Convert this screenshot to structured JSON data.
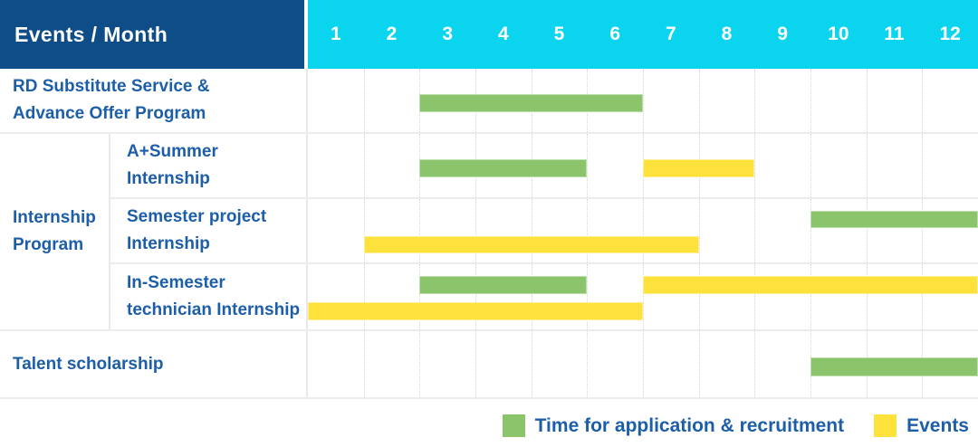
{
  "header": {
    "title": "Events / Month",
    "months": [
      "1",
      "2",
      "3",
      "4",
      "5",
      "6",
      "7",
      "8",
      "9",
      "10",
      "11",
      "12"
    ]
  },
  "colors": {
    "header_bg": "#0e4d87",
    "months_bg": "#0bd5ee",
    "application": "#8bc46a",
    "event": "#fde23c",
    "label_text": "#1c5ea8"
  },
  "legend": {
    "items": [
      {
        "key": "application",
        "label": "Time for application & recruitment"
      },
      {
        "key": "event",
        "label": "Events"
      }
    ]
  },
  "chart_data": {
    "type": "bar",
    "subtype": "gantt",
    "title": "Events / Month",
    "xlabel": "Month",
    "x_ticks": [
      1,
      2,
      3,
      4,
      5,
      6,
      7,
      8,
      9,
      10,
      11,
      12
    ],
    "x_range": [
      1,
      12
    ],
    "grid": "dotted-vertical",
    "legend_position": "bottom-right",
    "series_meaning": {
      "application": "Time for application & recruitment",
      "event": "Events"
    },
    "rows": [
      {
        "group": null,
        "label": "RD Substitute Service & Advance Offer Program",
        "label_lines": [
          "RD Substitute Service &",
          "Advance Offer Program"
        ],
        "bars": [
          {
            "kind": "application",
            "start_month": 3,
            "end_month": 6,
            "lane": "center"
          }
        ]
      },
      {
        "group": "Internship Program",
        "group_lines": [
          "Internship",
          "Program"
        ],
        "label": "A+Summer Internship",
        "label_lines": [
          "A+Summer",
          "Internship"
        ],
        "bars": [
          {
            "kind": "application",
            "start_month": 3,
            "end_month": 5,
            "lane": "center"
          },
          {
            "kind": "event",
            "start_month": 7,
            "end_month": 8,
            "lane": "center"
          }
        ]
      },
      {
        "group": "Internship Program",
        "group_lines": [
          "Internship",
          "Program"
        ],
        "label": "Semester project Internship",
        "label_lines": [
          "Semester project",
          "Internship"
        ],
        "bars": [
          {
            "kind": "application",
            "start_month": 10,
            "end_month": 12,
            "lane": "top"
          },
          {
            "kind": "event",
            "start_month": 2,
            "end_month": 7,
            "lane": "bottom"
          }
        ]
      },
      {
        "group": "Internship Program",
        "group_lines": [
          "Internship",
          "Program"
        ],
        "label": "In-Semester technician Internship",
        "label_lines": [
          "In-Semester",
          "technician Internship"
        ],
        "bars": [
          {
            "kind": "application",
            "start_month": 3,
            "end_month": 5,
            "lane": "top"
          },
          {
            "kind": "event",
            "start_month": 7,
            "end_month": 12,
            "lane": "top"
          },
          {
            "kind": "event",
            "start_month": 1,
            "end_month": 6,
            "lane": "bottom"
          }
        ]
      },
      {
        "group": null,
        "label": "Talent scholarship",
        "label_lines": [
          "Talent scholarship"
        ],
        "bars": [
          {
            "kind": "application",
            "start_month": 10,
            "end_month": 12,
            "lane": "center"
          }
        ]
      }
    ]
  }
}
